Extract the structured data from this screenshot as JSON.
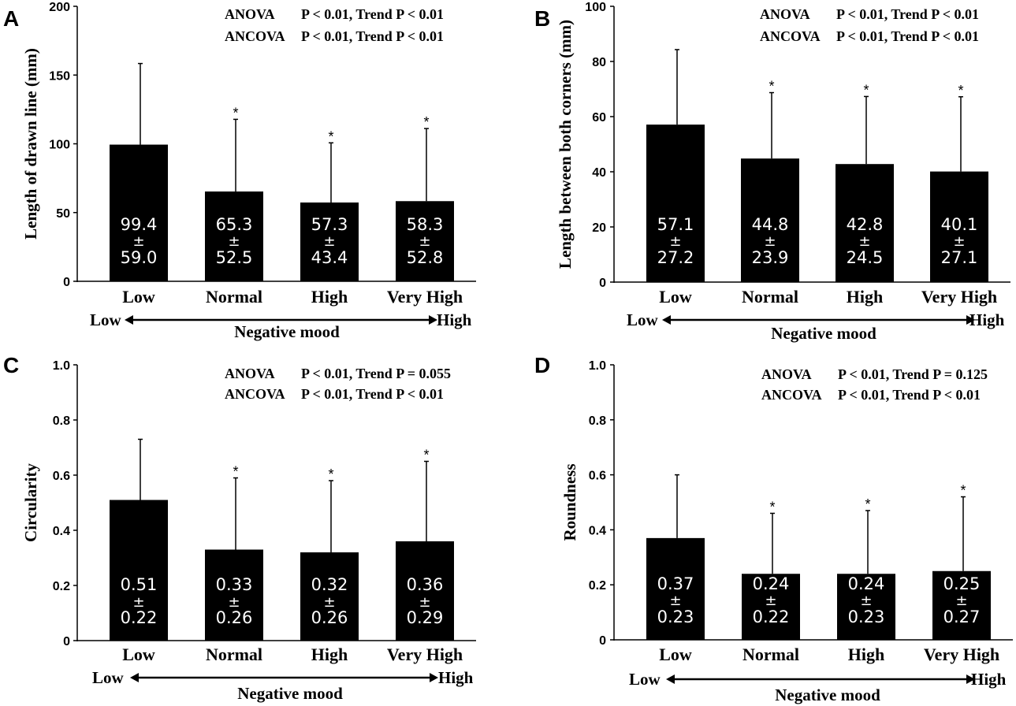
{
  "chart_data": [
    {
      "type": "bar",
      "panel": "A",
      "ylabel": "Length of drawn line (mm)",
      "ylim": [
        0,
        200
      ],
      "yticks": [
        "0",
        "50",
        "100",
        "150",
        "200"
      ],
      "categories": [
        "Low",
        "Normal",
        "High",
        "Very High"
      ],
      "values": [
        99.4,
        65.3,
        57.3,
        58.3
      ],
      "errors": [
        59.0,
        52.5,
        43.4,
        52.8
      ],
      "bar_labels": [
        {
          "mean": "99.4",
          "pm": "±",
          "sd": "59.0"
        },
        {
          "mean": "65.3",
          "pm": "±",
          "sd": "52.5"
        },
        {
          "mean": "57.3",
          "pm": "±",
          "sd": "43.4"
        },
        {
          "mean": "58.3",
          "pm": "±",
          "sd": "52.8"
        }
      ],
      "significance": [
        "",
        "*",
        "*",
        "*"
      ],
      "stats": [
        {
          "test": "ANOVA",
          "result": "P < 0.01, Trend P < 0.01"
        },
        {
          "test": "ANCOVA",
          "result": "P < 0.01, Trend P < 0.01"
        }
      ],
      "arrow": {
        "left": "Low",
        "right": "High"
      },
      "xlabel": "Negative mood"
    },
    {
      "type": "bar",
      "panel": "B",
      "ylabel": "Length between both corners (mm)",
      "ylim": [
        0,
        100
      ],
      "yticks": [
        "0",
        "20",
        "40",
        "60",
        "80",
        "100"
      ],
      "categories": [
        "Low",
        "Normal",
        "High",
        "Very High"
      ],
      "values": [
        57.1,
        44.8,
        42.8,
        40.1
      ],
      "errors": [
        27.2,
        23.9,
        24.5,
        27.1
      ],
      "bar_labels": [
        {
          "mean": "57.1",
          "pm": "±",
          "sd": "27.2"
        },
        {
          "mean": "44.8",
          "pm": "±",
          "sd": "23.9"
        },
        {
          "mean": "42.8",
          "pm": "±",
          "sd": "24.5"
        },
        {
          "mean": "40.1",
          "pm": "±",
          "sd": "27.1"
        }
      ],
      "significance": [
        "",
        "*",
        "*",
        "*"
      ],
      "stats": [
        {
          "test": "ANOVA",
          "result": "P < 0.01, Trend P < 0.01"
        },
        {
          "test": "ANCOVA",
          "result": "P < 0.01, Trend P < 0.01"
        }
      ],
      "arrow": {
        "left": "Low",
        "right": "High"
      },
      "xlabel": "Negative mood"
    },
    {
      "type": "bar",
      "panel": "C",
      "ylabel": "Circularity",
      "ylim": [
        0,
        1.0
      ],
      "yticks": [
        "0",
        "0.2",
        "0.4",
        "0.6",
        "0.8",
        "1.0"
      ],
      "categories": [
        "Low",
        "Normal",
        "High",
        "Very High"
      ],
      "values": [
        0.51,
        0.33,
        0.32,
        0.36
      ],
      "errors": [
        0.22,
        0.26,
        0.26,
        0.29
      ],
      "bar_labels": [
        {
          "mean": "0.51",
          "pm": "±",
          "sd": "0.22"
        },
        {
          "mean": "0.33",
          "pm": "±",
          "sd": "0.26"
        },
        {
          "mean": "0.32",
          "pm": "±",
          "sd": "0.26"
        },
        {
          "mean": "0.36",
          "pm": "±",
          "sd": "0.29"
        }
      ],
      "significance": [
        "",
        "*",
        "*",
        "*"
      ],
      "stats": [
        {
          "test": "ANOVA",
          "result": "P < 0.01, Trend P = 0.055"
        },
        {
          "test": "ANCOVA",
          "result": "P < 0.01, Trend P < 0.01"
        }
      ],
      "arrow": {
        "left": "Low",
        "right": "High"
      },
      "xlabel": "Negative mood"
    },
    {
      "type": "bar",
      "panel": "D",
      "ylabel": "Roundness",
      "ylim": [
        0,
        1.0
      ],
      "yticks": [
        "0",
        "0.2",
        "0.4",
        "0.6",
        "0.8",
        "1.0"
      ],
      "categories": [
        "Low",
        "Normal",
        "High",
        "Very High"
      ],
      "values": [
        0.37,
        0.24,
        0.24,
        0.25
      ],
      "errors": [
        0.23,
        0.22,
        0.23,
        0.27
      ],
      "bar_labels": [
        {
          "mean": "0.37",
          "pm": "±",
          "sd": "0.23"
        },
        {
          "mean": "0.24",
          "pm": "±",
          "sd": "0.22"
        },
        {
          "mean": "0.24",
          "pm": "±",
          "sd": "0.23"
        },
        {
          "mean": "0.25",
          "pm": "±",
          "sd": "0.27"
        }
      ],
      "significance": [
        "",
        "*",
        "*",
        "*"
      ],
      "stats": [
        {
          "test": "ANOVA",
          "result": "P < 0.01, Trend P = 0.125"
        },
        {
          "test": "ANCOVA",
          "result": "P < 0.01, Trend P < 0.01"
        }
      ],
      "arrow": {
        "left": "Low",
        "right": "High"
      },
      "xlabel": "Negative mood"
    }
  ]
}
